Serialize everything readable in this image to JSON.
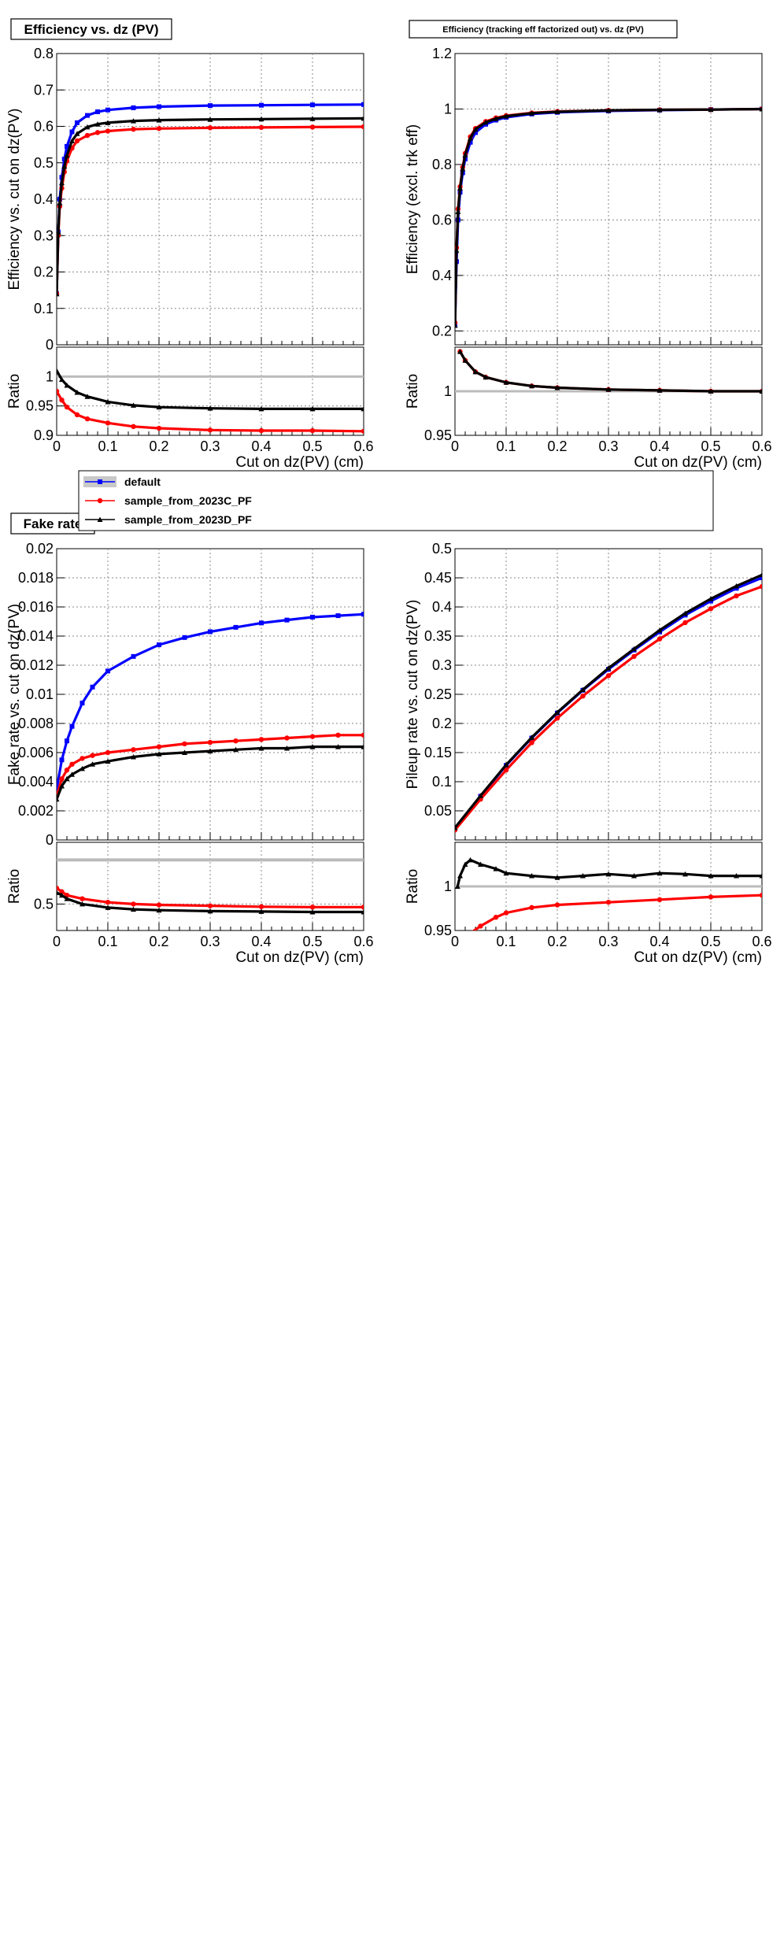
{
  "legend": {
    "entries": [
      {
        "label": "default",
        "color": "#0000ff",
        "marker": "square"
      },
      {
        "label": "sample_from_2023C_PF",
        "color": "#ff0000",
        "marker": "circle"
      },
      {
        "label": "sample_from_2023D_PF",
        "color": "#000000",
        "marker": "triangle"
      }
    ]
  },
  "chart_data": [
    {
      "type": "scatter",
      "title": "Efficiency vs. dz (PV)",
      "xlabel": "Cut on dz(PV) (cm)",
      "ylabel": "Efficiency vs. cut on dz(PV)",
      "xlim": [
        0,
        0.6
      ],
      "ylim": [
        0,
        0.8
      ],
      "xticks": [
        "0",
        "0.1",
        "0.2",
        "0.3",
        "0.4",
        "0.5",
        "0.6"
      ],
      "yticks": [
        "0",
        "0.1",
        "0.2",
        "0.3",
        "0.4",
        "0.5",
        "0.6",
        "0.7",
        "0.8"
      ],
      "grid": true,
      "series": [
        {
          "name": "default",
          "color": "#0000ff",
          "x": [
            0.0,
            0.003,
            0.006,
            0.01,
            0.015,
            0.02,
            0.03,
            0.04,
            0.06,
            0.08,
            0.1,
            0.15,
            0.2,
            0.3,
            0.4,
            0.5,
            0.6
          ],
          "y": [
            0.14,
            0.31,
            0.4,
            0.46,
            0.51,
            0.545,
            0.585,
            0.61,
            0.63,
            0.64,
            0.645,
            0.651,
            0.654,
            0.657,
            0.658,
            0.659,
            0.66
          ]
        },
        {
          "name": "sample_from_2023C_PF",
          "color": "#ff0000",
          "x": [
            0.0,
            0.003,
            0.006,
            0.01,
            0.015,
            0.02,
            0.03,
            0.04,
            0.06,
            0.08,
            0.1,
            0.15,
            0.2,
            0.3,
            0.4,
            0.5,
            0.6
          ],
          "y": [
            0.14,
            0.3,
            0.38,
            0.43,
            0.475,
            0.505,
            0.54,
            0.56,
            0.575,
            0.583,
            0.587,
            0.592,
            0.594,
            0.596,
            0.597,
            0.598,
            0.599
          ]
        },
        {
          "name": "sample_from_2023D_PF",
          "color": "#000000",
          "x": [
            0.0,
            0.003,
            0.006,
            0.01,
            0.015,
            0.02,
            0.03,
            0.04,
            0.06,
            0.08,
            0.1,
            0.15,
            0.2,
            0.3,
            0.4,
            0.5,
            0.6
          ],
          "y": [
            0.14,
            0.31,
            0.39,
            0.445,
            0.49,
            0.52,
            0.56,
            0.58,
            0.598,
            0.606,
            0.61,
            0.615,
            0.617,
            0.619,
            0.62,
            0.621,
            0.622
          ]
        }
      ],
      "ratio": {
        "ylabel": "Ratio",
        "ylim": [
          0.9,
          1.05
        ],
        "yticks": [
          "0.9",
          "0.95",
          "1"
        ],
        "series": [
          {
            "name": "sample_from_2023C_PF",
            "color": "#ff0000",
            "x": [
              0.0,
              0.01,
              0.02,
              0.04,
              0.06,
              0.1,
              0.15,
              0.2,
              0.3,
              0.4,
              0.5,
              0.6
            ],
            "y": [
              0.975,
              0.96,
              0.948,
              0.935,
              0.928,
              0.921,
              0.915,
              0.912,
              0.909,
              0.908,
              0.908,
              0.907
            ]
          },
          {
            "name": "sample_from_2023D_PF",
            "color": "#000000",
            "x": [
              0.0,
              0.01,
              0.02,
              0.04,
              0.06,
              0.1,
              0.15,
              0.2,
              0.3,
              0.4,
              0.5,
              0.6
            ],
            "y": [
              1.01,
              0.995,
              0.985,
              0.973,
              0.966,
              0.957,
              0.951,
              0.948,
              0.946,
              0.945,
              0.945,
              0.945
            ]
          }
        ]
      }
    },
    {
      "type": "scatter",
      "title": "Efficiency (tracking eff factorized out) vs. dz (PV)",
      "xlabel": "Cut on dz(PV) (cm)",
      "ylabel": "Efficiency (excl. trk eff)",
      "xlim": [
        0,
        0.6
      ],
      "ylim": [
        0.15,
        1.2
      ],
      "xticks": [
        "0",
        "0.1",
        "0.2",
        "0.3",
        "0.4",
        "0.5",
        "0.6"
      ],
      "yticks": [
        "0.2",
        "0.4",
        "0.6",
        "0.8",
        "1",
        "1.2"
      ],
      "grid": true,
      "series": [
        {
          "name": "default",
          "color": "#0000ff",
          "x": [
            0.0,
            0.003,
            0.006,
            0.01,
            0.015,
            0.02,
            0.03,
            0.04,
            0.06,
            0.08,
            0.1,
            0.15,
            0.2,
            0.3,
            0.4,
            0.5,
            0.6
          ],
          "y": [
            0.22,
            0.45,
            0.6,
            0.7,
            0.77,
            0.82,
            0.88,
            0.915,
            0.945,
            0.96,
            0.97,
            0.982,
            0.988,
            0.993,
            0.996,
            0.998,
            1.0
          ]
        },
        {
          "name": "sample_from_2023C_PF",
          "color": "#ff0000",
          "x": [
            0.0,
            0.003,
            0.006,
            0.01,
            0.015,
            0.02,
            0.03,
            0.04,
            0.06,
            0.08,
            0.1,
            0.15,
            0.2,
            0.3,
            0.4,
            0.5,
            0.6
          ],
          "y": [
            0.23,
            0.5,
            0.64,
            0.72,
            0.79,
            0.84,
            0.9,
            0.93,
            0.955,
            0.968,
            0.976,
            0.986,
            0.991,
            0.995,
            0.997,
            0.998,
            1.0
          ]
        },
        {
          "name": "sample_from_2023D_PF",
          "color": "#000000",
          "x": [
            0.0,
            0.003,
            0.006,
            0.01,
            0.015,
            0.02,
            0.03,
            0.04,
            0.06,
            0.08,
            0.1,
            0.15,
            0.2,
            0.3,
            0.4,
            0.5,
            0.6
          ],
          "y": [
            0.22,
            0.49,
            0.63,
            0.715,
            0.785,
            0.835,
            0.895,
            0.927,
            0.952,
            0.965,
            0.974,
            0.985,
            0.99,
            0.995,
            0.997,
            0.998,
            1.0
          ]
        }
      ],
      "ratio": {
        "ylabel": "Ratio",
        "ylim": [
          0.95,
          1.05
        ],
        "yticks": [
          "0.95",
          "1"
        ],
        "series": [
          {
            "name": "sample_from_2023C_PF",
            "color": "#ff0000",
            "x": [
              0.01,
              0.02,
              0.04,
              0.06,
              0.1,
              0.15,
              0.2,
              0.3,
              0.4,
              0.5,
              0.6
            ],
            "y": [
              1.045,
              1.035,
              1.022,
              1.016,
              1.01,
              1.006,
              1.004,
              1.002,
              1.001,
              1.0,
              1.0
            ]
          },
          {
            "name": "sample_from_2023D_PF",
            "color": "#000000",
            "x": [
              0.01,
              0.02,
              0.04,
              0.06,
              0.1,
              0.15,
              0.2,
              0.3,
              0.4,
              0.5,
              0.6
            ],
            "y": [
              1.045,
              1.035,
              1.022,
              1.016,
              1.01,
              1.006,
              1.004,
              1.002,
              1.001,
              1.0,
              1.0
            ]
          }
        ]
      }
    },
    {
      "type": "scatter",
      "title": "Fake rate",
      "xlabel": "Cut on dz(PV) (cm)",
      "ylabel": "Fake rate vs. cut on dz(PV)",
      "xlim": [
        0,
        0.6
      ],
      "ylim": [
        0,
        0.02
      ],
      "xticks": [
        "0",
        "0.1",
        "0.2",
        "0.3",
        "0.4",
        "0.5",
        "0.6"
      ],
      "yticks": [
        "0",
        "0.002",
        "0.004",
        "0.006",
        "0.008",
        "0.01",
        "0.012",
        "0.014",
        "0.016",
        "0.018",
        "0.02"
      ],
      "grid": true,
      "series": [
        {
          "name": "default",
          "color": "#0000ff",
          "x": [
            0.0,
            0.01,
            0.02,
            0.03,
            0.05,
            0.07,
            0.1,
            0.15,
            0.2,
            0.25,
            0.3,
            0.35,
            0.4,
            0.45,
            0.5,
            0.55,
            0.6
          ],
          "y": [
            0.0035,
            0.0055,
            0.0068,
            0.0078,
            0.0094,
            0.0105,
            0.0116,
            0.0126,
            0.0134,
            0.0139,
            0.0143,
            0.0146,
            0.0149,
            0.0151,
            0.0153,
            0.0154,
            0.0155
          ]
        },
        {
          "name": "sample_from_2023C_PF",
          "color": "#ff0000",
          "x": [
            0.0,
            0.01,
            0.02,
            0.03,
            0.05,
            0.07,
            0.1,
            0.15,
            0.2,
            0.25,
            0.3,
            0.35,
            0.4,
            0.45,
            0.5,
            0.55,
            0.6
          ],
          "y": [
            0.003,
            0.0042,
            0.0048,
            0.0052,
            0.0056,
            0.0058,
            0.006,
            0.0062,
            0.0064,
            0.0066,
            0.0067,
            0.0068,
            0.0069,
            0.007,
            0.0071,
            0.0072,
            0.0072
          ]
        },
        {
          "name": "sample_from_2023D_PF",
          "color": "#000000",
          "x": [
            0.0,
            0.01,
            0.02,
            0.03,
            0.05,
            0.07,
            0.1,
            0.15,
            0.2,
            0.25,
            0.3,
            0.35,
            0.4,
            0.45,
            0.5,
            0.55,
            0.6
          ],
          "y": [
            0.0028,
            0.0037,
            0.0042,
            0.0045,
            0.0049,
            0.0052,
            0.0054,
            0.0057,
            0.0059,
            0.006,
            0.0061,
            0.0062,
            0.0063,
            0.0063,
            0.0064,
            0.0064,
            0.0064
          ]
        }
      ],
      "ratio": {
        "ylabel": "Ratio",
        "ylim": [
          0.2,
          1.2
        ],
        "yticks": [
          "0.5"
        ],
        "series": [
          {
            "name": "sample_from_2023C_PF",
            "color": "#ff0000",
            "x": [
              0.0,
              0.01,
              0.02,
              0.05,
              0.1,
              0.15,
              0.2,
              0.3,
              0.4,
              0.5,
              0.6
            ],
            "y": [
              0.68,
              0.64,
              0.6,
              0.56,
              0.52,
              0.5,
              0.49,
              0.48,
              0.47,
              0.465,
              0.465
            ]
          },
          {
            "name": "sample_from_2023D_PF",
            "color": "#000000",
            "x": [
              0.0,
              0.01,
              0.02,
              0.05,
              0.1,
              0.15,
              0.2,
              0.3,
              0.4,
              0.5,
              0.6
            ],
            "y": [
              0.63,
              0.6,
              0.56,
              0.5,
              0.46,
              0.44,
              0.43,
              0.42,
              0.415,
              0.41,
              0.41
            ]
          }
        ]
      }
    },
    {
      "type": "scatter",
      "title": "",
      "xlabel": "Cut on dz(PV) (cm)",
      "ylabel": "Pileup rate vs. cut on dz(PV)",
      "xlim": [
        0,
        0.6
      ],
      "ylim": [
        0,
        0.5
      ],
      "xticks": [
        "0",
        "0.1",
        "0.2",
        "0.3",
        "0.4",
        "0.5",
        "0.6"
      ],
      "yticks": [
        "0.05",
        "0.1",
        "0.15",
        "0.2",
        "0.25",
        "0.3",
        "0.35",
        "0.4",
        "0.45",
        "0.5"
      ],
      "grid": true,
      "series": [
        {
          "name": "default",
          "color": "#0000ff",
          "x": [
            0.0,
            0.05,
            0.1,
            0.15,
            0.2,
            0.25,
            0.3,
            0.35,
            0.4,
            0.45,
            0.5,
            0.55,
            0.6
          ],
          "y": [
            0.02,
            0.075,
            0.128,
            0.175,
            0.218,
            0.257,
            0.293,
            0.326,
            0.357,
            0.386,
            0.41,
            0.432,
            0.45
          ]
        },
        {
          "name": "sample_from_2023C_PF",
          "color": "#ff0000",
          "x": [
            0.0,
            0.05,
            0.1,
            0.15,
            0.2,
            0.25,
            0.3,
            0.35,
            0.4,
            0.45,
            0.5,
            0.55,
            0.6
          ],
          "y": [
            0.017,
            0.07,
            0.12,
            0.167,
            0.209,
            0.247,
            0.282,
            0.315,
            0.345,
            0.373,
            0.397,
            0.419,
            0.435
          ]
        },
        {
          "name": "sample_from_2023D_PF",
          "color": "#000000",
          "x": [
            0.0,
            0.05,
            0.1,
            0.15,
            0.2,
            0.25,
            0.3,
            0.35,
            0.4,
            0.45,
            0.5,
            0.55,
            0.6
          ],
          "y": [
            0.021,
            0.076,
            0.129,
            0.176,
            0.219,
            0.258,
            0.295,
            0.328,
            0.36,
            0.389,
            0.414,
            0.436,
            0.455
          ]
        }
      ],
      "ratio": {
        "ylabel": "Ratio",
        "ylim": [
          0.95,
          1.05
        ],
        "yticks": [
          "0.95",
          "1"
        ],
        "series": [
          {
            "name": "sample_from_2023C_PF",
            "color": "#ff0000",
            "x": [
              0.025,
              0.05,
              0.08,
              0.1,
              0.15,
              0.2,
              0.3,
              0.4,
              0.5,
              0.6
            ],
            "y": [
              0.945,
              0.955,
              0.965,
              0.97,
              0.976,
              0.979,
              0.982,
              0.985,
              0.988,
              0.99
            ]
          },
          {
            "name": "sample_from_2023D_PF",
            "color": "#000000",
            "x": [
              0.005,
              0.01,
              0.02,
              0.03,
              0.05,
              0.08,
              0.1,
              0.15,
              0.2,
              0.25,
              0.3,
              0.35,
              0.4,
              0.45,
              0.5,
              0.55,
              0.6
            ],
            "y": [
              1.0,
              1.012,
              1.025,
              1.03,
              1.025,
              1.02,
              1.015,
              1.012,
              1.01,
              1.012,
              1.014,
              1.012,
              1.015,
              1.014,
              1.012,
              1.012,
              1.012
            ]
          }
        ]
      }
    }
  ]
}
